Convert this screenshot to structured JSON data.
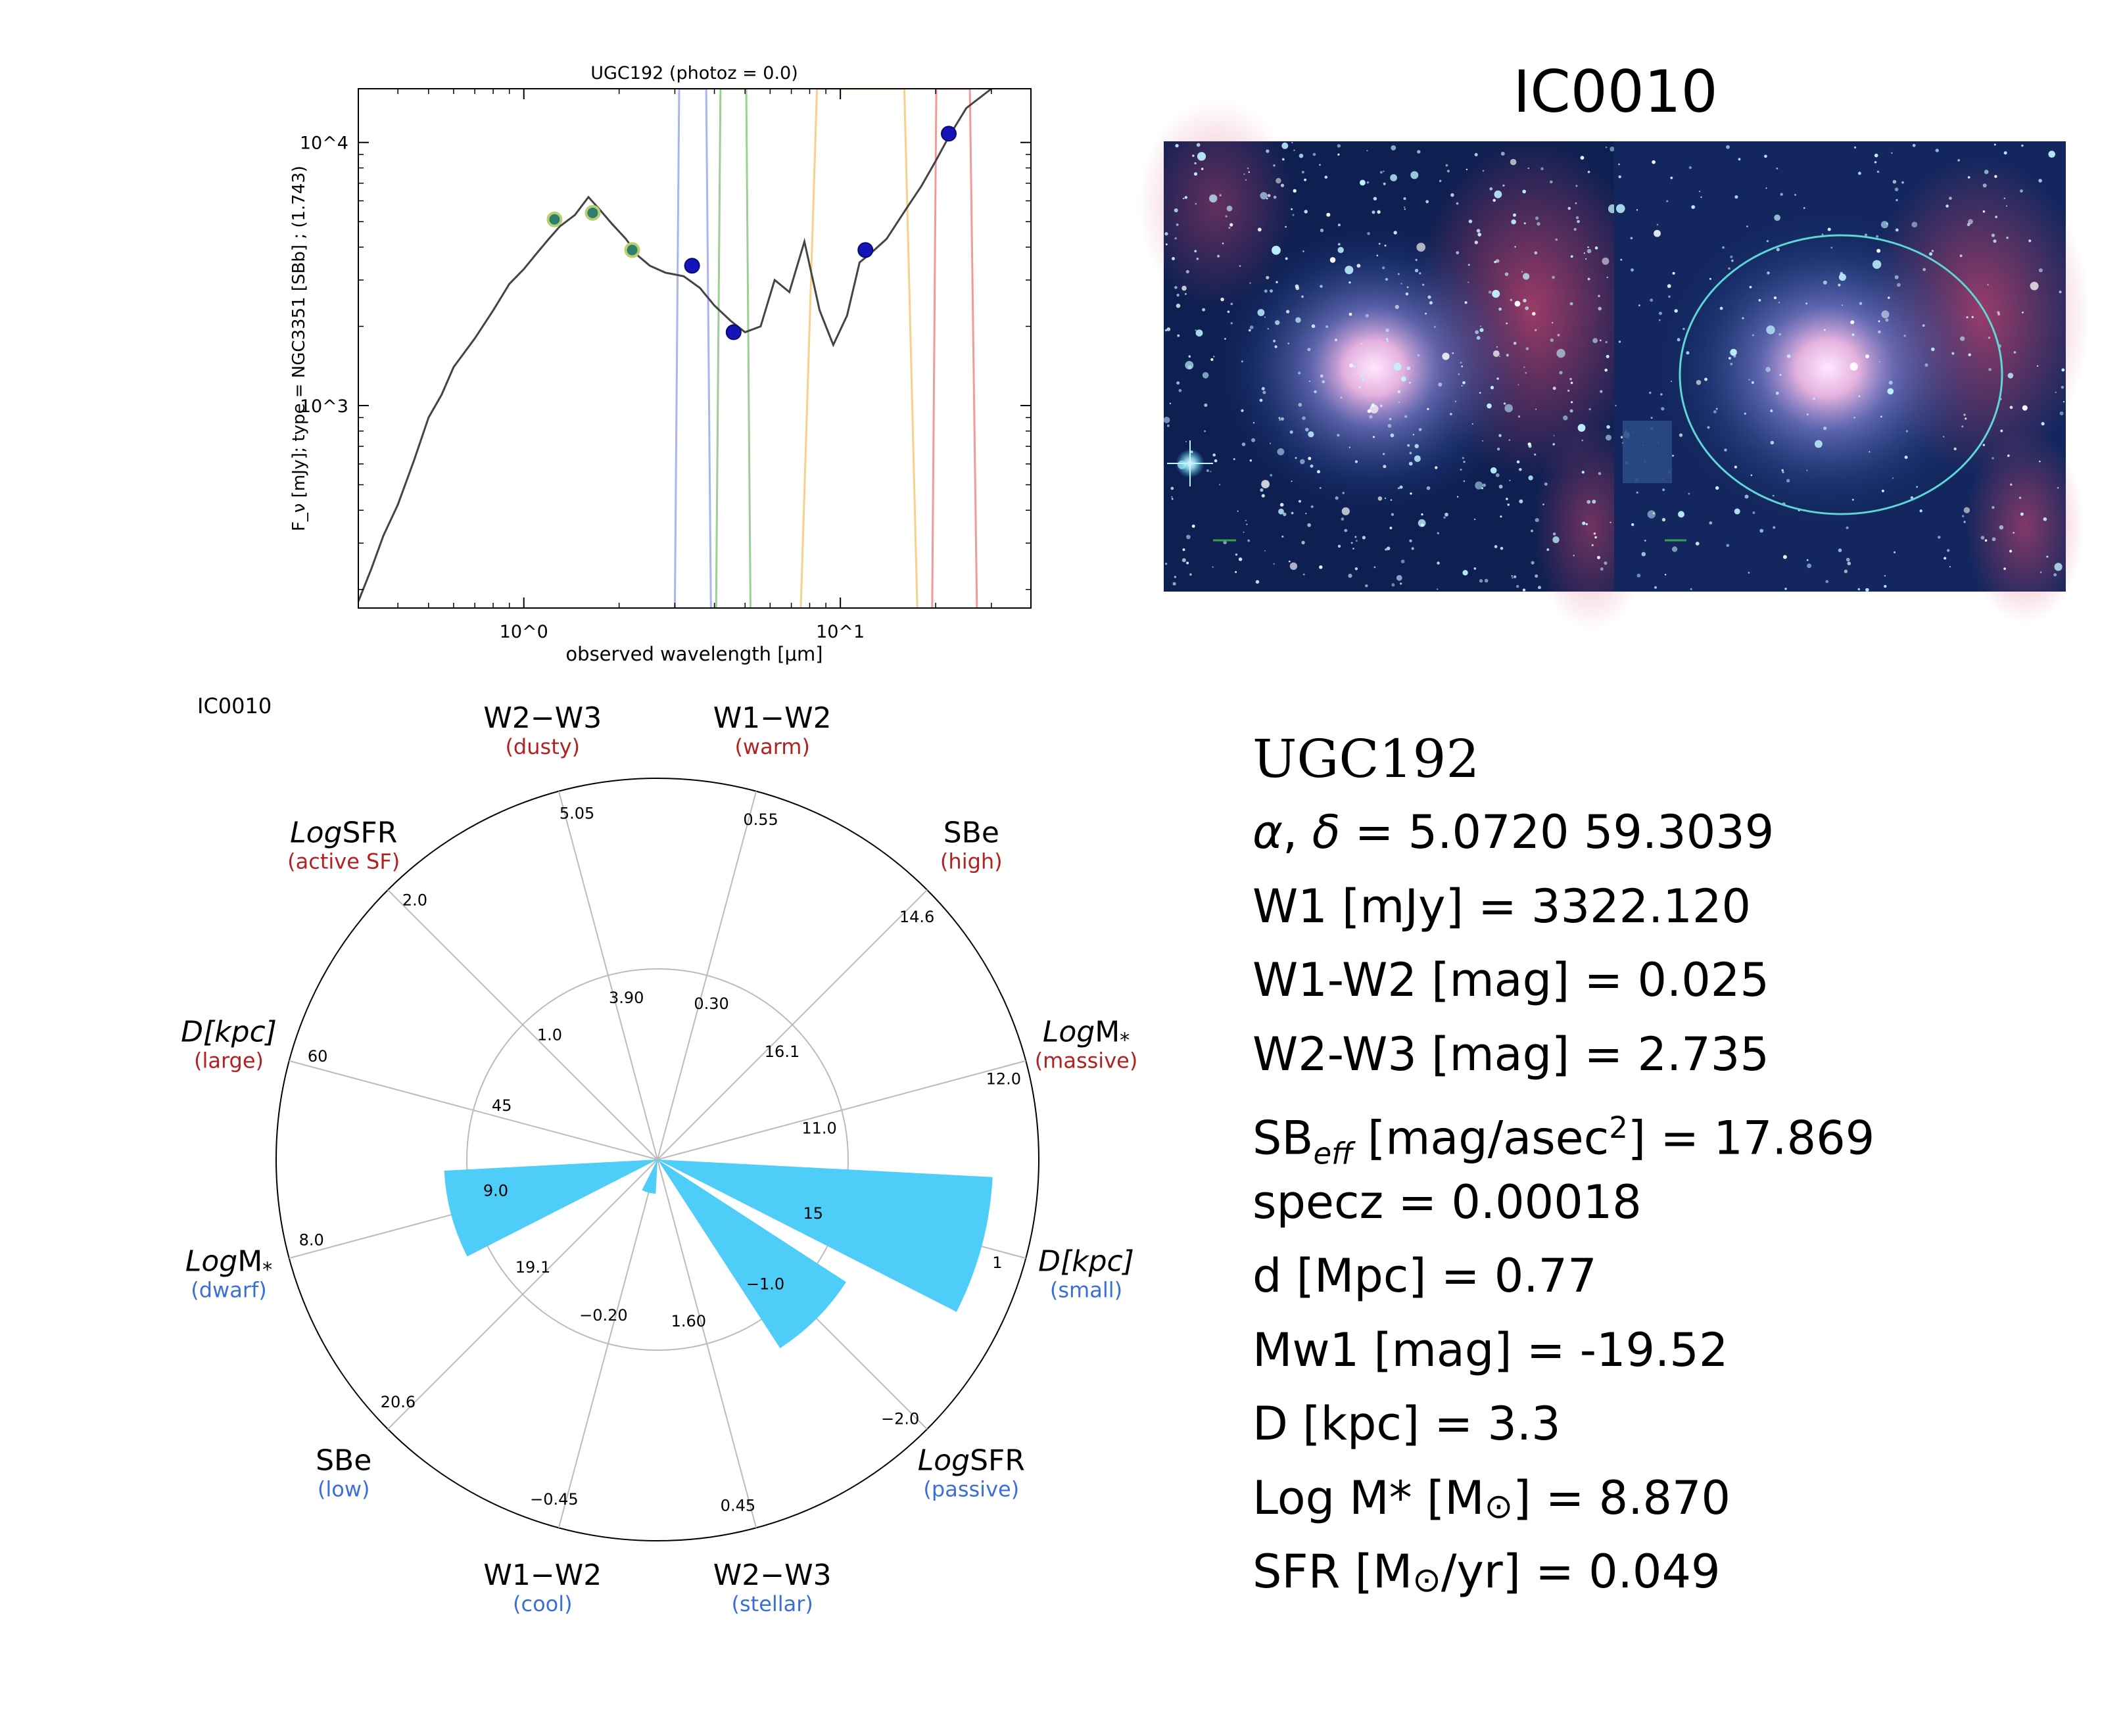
{
  "sed_panel": {
    "title": "UGC192 (photoz = 0.0)",
    "xlabel": "observed wavelength [μm]",
    "ylabel": "F_ν [mJy];  type = NGC3351 [SBb] ; (1.743)",
    "x_ticks": [
      "10^0",
      "10^1"
    ],
    "y_ticks": [
      "10^3",
      "10^4"
    ],
    "chart_data": {
      "type": "line",
      "x_scale": "log",
      "y_scale": "log",
      "xlim": [
        0.3,
        40
      ],
      "ylim": [
        170,
        16000
      ],
      "template_sed": [
        [
          0.3,
          180
        ],
        [
          0.33,
          240
        ],
        [
          0.36,
          320
        ],
        [
          0.4,
          420
        ],
        [
          0.45,
          620
        ],
        [
          0.5,
          900
        ],
        [
          0.55,
          1100
        ],
        [
          0.6,
          1400
        ],
        [
          0.7,
          1800
        ],
        [
          0.8,
          2300
        ],
        [
          0.9,
          2900
        ],
        [
          1.0,
          3300
        ],
        [
          1.1,
          3800
        ],
        [
          1.2,
          4300
        ],
        [
          1.3,
          4800
        ],
        [
          1.45,
          5300
        ],
        [
          1.6,
          6200
        ],
        [
          1.75,
          5500
        ],
        [
          1.9,
          4900
        ],
        [
          2.1,
          4300
        ],
        [
          2.3,
          3700
        ],
        [
          2.5,
          3400
        ],
        [
          2.8,
          3200
        ],
        [
          3.2,
          3100
        ],
        [
          3.6,
          2800
        ],
        [
          4.0,
          2400
        ],
        [
          4.5,
          2100
        ],
        [
          5.0,
          1900
        ],
        [
          5.6,
          2000
        ],
        [
          6.2,
          3000
        ],
        [
          6.9,
          2700
        ],
        [
          7.7,
          4200
        ],
        [
          8.6,
          2300
        ],
        [
          9.5,
          1700
        ],
        [
          10.5,
          2200
        ],
        [
          11.5,
          3500
        ],
        [
          12.5,
          3800
        ],
        [
          14,
          4300
        ],
        [
          16,
          5500
        ],
        [
          18,
          6800
        ],
        [
          20,
          8500
        ],
        [
          22,
          10500
        ],
        [
          25,
          13500
        ],
        [
          30,
          16000
        ]
      ],
      "photometry_open": [
        [
          1.25,
          5100
        ],
        [
          1.65,
          5400
        ],
        [
          2.2,
          3900
        ]
      ],
      "photometry_filled": [
        [
          3.4,
          3400
        ],
        [
          4.6,
          1900
        ],
        [
          12.0,
          3900
        ],
        [
          22.0,
          10800
        ]
      ],
      "filter_curves": [
        {
          "band": "W1",
          "color": "#aab4f2",
          "center": 3.4,
          "lo": 3.0,
          "hi": 3.9
        },
        {
          "band": "W2",
          "color": "#9ccf94",
          "center": 4.6,
          "lo": 4.05,
          "hi": 5.2
        },
        {
          "band": "W3",
          "color": "#f6d08c",
          "center": 12.0,
          "lo": 7.5,
          "hi": 17.5
        },
        {
          "band": "W4",
          "color": "#f29a9a",
          "center": 22.0,
          "lo": 19.5,
          "hi": 27.0
        }
      ]
    }
  },
  "image_panel": {
    "title": "IC0010"
  },
  "radar_panel": {
    "label": "IC0010",
    "chart_data": {
      "type": "polar-bar",
      "axes": [
        {
          "label": "W1−W2",
          "qual": "(warm)",
          "qual_color": "red",
          "ticks": [
            "0.30",
            "0.55"
          ],
          "angle": -75
        },
        {
          "label": "W2−W3",
          "qual": "(dusty)",
          "qual_color": "red",
          "ticks": [
            "3.90",
            "5.05"
          ],
          "angle": -105
        },
        {
          "label": "LogSFR",
          "label_prefix": "Log",
          "label_main": "SFR",
          "qual": "(active SF)",
          "qual_color": "red",
          "ticks": [
            "1.0",
            "2.0"
          ],
          "angle": -135
        },
        {
          "label": "D[kpc]",
          "qual": "(large)",
          "qual_color": "red",
          "ticks": [
            "45",
            "60"
          ],
          "angle": -165
        },
        {
          "label": "LogM*",
          "label_prefix": "Log",
          "label_main": "M",
          "qual": "(dwarf)",
          "qual_color": "blue",
          "ticks": [
            "9.0",
            "8.0"
          ],
          "angle": 165
        },
        {
          "label": "SBe",
          "qual": "(low)",
          "qual_color": "blue",
          "ticks": [
            "19.1",
            "20.6"
          ],
          "angle": 135
        },
        {
          "label": "W1−W2",
          "qual": "(cool)",
          "qual_color": "blue",
          "ticks": [
            "−0.20",
            "−0.45"
          ],
          "angle": 105
        },
        {
          "label": "W2−W3",
          "qual": "(stellar)",
          "qual_color": "blue",
          "ticks": [
            "1.60",
            "0.45"
          ],
          "angle": 75
        },
        {
          "label": "LogSFR",
          "label_prefix": "Log",
          "label_main": "SFR",
          "qual": "(passive)",
          "qual_color": "blue",
          "ticks": [
            "−1.0",
            "−2.0"
          ],
          "angle": 45
        },
        {
          "label": "D[kpc]",
          "qual": "(small)",
          "qual_color": "blue",
          "ticks": [
            "15",
            "1"
          ],
          "angle": 15
        },
        {
          "label": "LogM*",
          "label_prefix": "Log",
          "label_main": "M",
          "qual": "(massive)",
          "qual_color": "red",
          "ticks": [
            "11.0",
            "12.0"
          ],
          "angle": -15
        },
        {
          "label": "SBe",
          "qual": "(high)",
          "qual_color": "red",
          "ticks": [
            "16.1",
            "14.6"
          ],
          "angle": -45
        }
      ],
      "bar_radius_fraction": [
        0,
        0,
        0,
        0,
        0.56,
        0,
        0.09,
        0,
        0.59,
        0.88,
        0,
        0
      ]
    }
  },
  "info": {
    "name": "UGC192",
    "radec_value": " = 5.0720 59.3039",
    "w1_value": "W1 [mJy] = 3322.120",
    "w1w2_value": "W1-W2 [mag] = 0.025",
    "w2w3_value": "W2-W3 [mag] = 2.735",
    "sb_prefix": "SB",
    "sb_sub": "eff",
    "sb_unit": " [mag/asec",
    "sb_sup": "2",
    "sb_value": "] = 17.869",
    "specz": "specz = 0.00018",
    "dist": "d [Mpc] = 0.77",
    "mw1": "Mw1 [mag] = -19.52",
    "dkpc": "D [kpc] = 3.3",
    "logm_prefix": "Log M* [M",
    "logm_value": "] = 8.870",
    "sfr_prefix": "SFR [M",
    "sfr_value": "/yr] = 0.049"
  }
}
